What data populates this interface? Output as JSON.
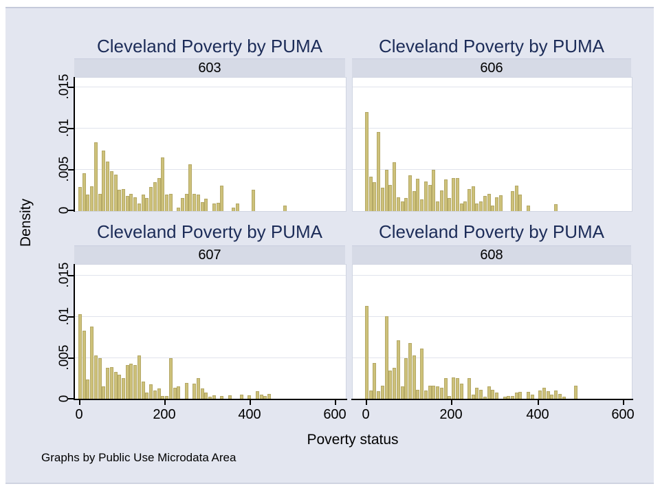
{
  "graph": {
    "panel_title": "Cleveland Poverty by PUMA",
    "xlabel": "Poverty status",
    "ylabel": "Density",
    "footer": "Graphs by Public Use Microdata Area",
    "x_tick_labels": [
      "0",
      "200",
      "400",
      "600"
    ],
    "y_tick_labels": [
      "0",
      ".005",
      ".01",
      ".015"
    ],
    "colors": {
      "background": "#e3e6f0",
      "strip_bg": "#d6dae6",
      "bar_fill": "#cdc17a",
      "bar_edge": "#b3a765",
      "title_text": "#1c2c58",
      "grid": "#e0e3ec",
      "axis": "#000000"
    }
  },
  "chart_data": {
    "type": "bar",
    "subtype": "histogram_small_multiples",
    "title": "Cleveland Poverty by PUMA",
    "xlabel": "Poverty status",
    "ylabel": "Density",
    "note": "Graphs by Public Use Microdata Area",
    "x_ticks": [
      0,
      200,
      400,
      600
    ],
    "y_ticks": [
      0,
      0.005,
      0.01,
      0.015
    ],
    "xlim": [
      0,
      620
    ],
    "ylim": [
      0,
      0.016
    ],
    "grid": true,
    "bin_start": 0,
    "bin_width": 9.2,
    "panels": [
      {
        "label": "603",
        "row": 0,
        "col": 0,
        "values": [
          0.0029,
          0.0046,
          0.002,
          0.003,
          0.0083,
          0.0021,
          0.0073,
          0.006,
          0.0048,
          0.0044,
          0.0026,
          0.0027,
          0.0018,
          0.0021,
          0.0017,
          0.0009,
          0.002,
          0.0016,
          0.0029,
          0.0035,
          0.004,
          0.0065,
          0.002,
          0.0021,
          0,
          0.0004,
          0.0016,
          0.0021,
          0.0057,
          0.0021,
          0.002,
          0.0011,
          0.0015,
          0,
          0.0009,
          0.001,
          0.0031,
          0,
          0,
          0.0004,
          0.0009,
          0,
          0,
          0,
          0.0026,
          0,
          0,
          0,
          0,
          0,
          0,
          0,
          0.0007
        ]
      },
      {
        "label": "606",
        "row": 0,
        "col": 1,
        "values": [
          0.012,
          0.0042,
          0.0035,
          0.0096,
          0.0028,
          0.005,
          0.0032,
          0.0059,
          0.0017,
          0.0012,
          0.0016,
          0.0043,
          0.0024,
          0.0039,
          0.0014,
          0.0036,
          0.0032,
          0.005,
          0.0012,
          0.0025,
          0.0038,
          0.0016,
          0.004,
          0.004,
          0.0009,
          0.0012,
          0.0027,
          0.003,
          0.0009,
          0.0012,
          0.0018,
          0.0021,
          0.0007,
          0.0017,
          0.0019,
          0,
          0,
          0.0024,
          0.0031,
          0.002,
          0,
          0.0007,
          0,
          0,
          0,
          0,
          0,
          0,
          0.0008
        ]
      },
      {
        "label": "607",
        "row": 1,
        "col": 0,
        "values": [
          0.0103,
          0.0083,
          0.0024,
          0.0088,
          0.0053,
          0.005,
          0.0016,
          0.0038,
          0.0039,
          0.0033,
          0.003,
          0.0026,
          0.0042,
          0.0043,
          0.0042,
          0.0053,
          0.0022,
          0.0008,
          0.0018,
          0.0011,
          0.0013,
          0.0004,
          0.0004,
          0.005,
          0.0014,
          0.0016,
          0,
          0.002,
          0,
          0.0019,
          0.0026,
          0.0013,
          0.0008,
          0.0003,
          0.0005,
          0,
          0.0004,
          0,
          0.0005,
          0,
          0,
          0.0006,
          0,
          0.0005,
          0,
          0.001,
          0.0006,
          0.0004,
          0.0007
        ]
      },
      {
        "label": "608",
        "row": 1,
        "col": 1,
        "values": [
          0.0113,
          0.0011,
          0.0044,
          0.001,
          0.0017,
          0.0101,
          0.0035,
          0.0038,
          0.0072,
          0.0016,
          0.005,
          0.0068,
          0.0053,
          0.0012,
          0.0062,
          0.0011,
          0.0017,
          0.0017,
          0.0016,
          0.0014,
          0.0026,
          0.0004,
          0.0027,
          0.0026,
          0.0019,
          0,
          0.0026,
          0.0006,
          0.0014,
          0.0012,
          0.0003,
          0.0016,
          0.0012,
          0.0008,
          0,
          0.0003,
          0.0004,
          0.0004,
          0.0008,
          0.0009,
          0,
          0.0009,
          0.0006,
          0,
          0.0011,
          0.0014,
          0.001,
          0.0006,
          0.0011,
          0.0007,
          0.0003,
          0,
          0,
          0.0017
        ]
      }
    ]
  }
}
